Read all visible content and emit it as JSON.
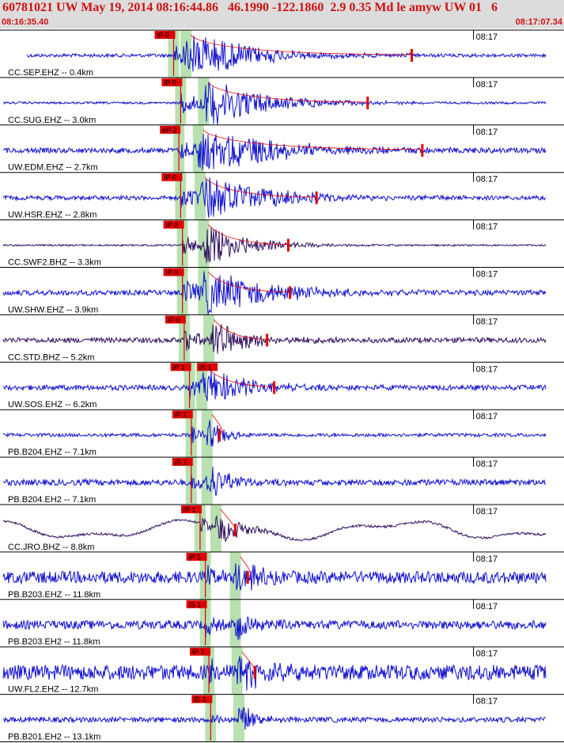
{
  "header": {
    "title": "60781021 UW May 19, 2014 08:16:44.86   46.1990 -122.1860  2.9 0.35 Md le amyw UW 01   6",
    "start_time": "08:16:35.40",
    "end_time": "08:17:07.34"
  },
  "colors": {
    "trace": "#1010d0",
    "trace_dark": "#301060",
    "pick": "#e00000",
    "window": "#b8e0b0",
    "frame": "#000000",
    "header_bg": "#dcdcdc"
  },
  "chart_data": {
    "type": "line",
    "title": "",
    "time_range": [
      "08:16:35.40",
      "08:17:07.34"
    ],
    "tick_label": "08:17",
    "tick_time_s": 24.6,
    "traces": [
      {
        "label": "CC.SEP.EHZ -- 0.4km",
        "pick": "iP 0",
        "pick_time_s": 7.6,
        "s_time_s": 8.3,
        "coda_end_s": 21.1,
        "color": "trace",
        "noise": 0.08,
        "peak": 1.0,
        "decay": 3.5
      },
      {
        "label": "CC.SUG.EHZ -- 3.0km",
        "pick": "iP 0",
        "pick_time_s": 8.0,
        "s_time_s": 9.3,
        "coda_end_s": 18.6,
        "color": "trace",
        "noise": 0.05,
        "peak": 1.0,
        "decay": 3.5
      },
      {
        "label": "UW.EDM.EHZ -- 2.7km",
        "pick": "eP 2",
        "pick_time_s": 7.9,
        "s_time_s": 9.0,
        "coda_end_s": 21.7,
        "color": "trace",
        "noise": 0.12,
        "peak": 0.9,
        "decay": 4.5
      },
      {
        "label": "UW.HSR.EHZ -- 2.8km",
        "pick": "iP 0",
        "pick_time_s": 8.0,
        "s_time_s": 9.1,
        "coda_end_s": 15.7,
        "color": "trace",
        "noise": 0.1,
        "peak": 1.0,
        "decay": 3.5
      },
      {
        "label": "CC.SWF2.BHZ -- 3.3km",
        "pick": "iP 0",
        "pick_time_s": 8.1,
        "s_time_s": 9.3,
        "coda_end_s": 14.1,
        "color": "trace_dark",
        "noise": 0.04,
        "peak": 0.9,
        "decay": 2.5
      },
      {
        "label": "UW.SHW.EHZ -- 3.9km",
        "pick": "iP 0",
        "pick_time_s": 8.1,
        "s_time_s": 9.3,
        "coda_end_s": 14.2,
        "color": "trace",
        "noise": 0.12,
        "peak": 1.0,
        "decay": 3.5
      },
      {
        "label": "CC.STD.BHZ -- 5.2km",
        "pick": "iP 0",
        "pick_time_s": 8.2,
        "s_time_s": 9.6,
        "coda_end_s": 12.9,
        "color": "trace_dark",
        "noise": 0.12,
        "peak": 0.9,
        "decay": 2.0
      },
      {
        "label": "UW.SOS.EHZ -- 6.2km",
        "pick": "iP 1",
        "s_pick": "iS 1",
        "pick_time_s": 8.5,
        "s_time_s": 9.2,
        "coda_end_s": 13.3,
        "color": "trace",
        "noise": 0.12,
        "peak": 0.8,
        "decay": 2.5
      },
      {
        "label": "PB.B204.EHZ -- 7.1km",
        "pick": "iP 1",
        "pick_time_s": 8.6,
        "s_time_s": 9.5,
        "coda_end_s": 10.2,
        "color": "trace",
        "noise": 0.08,
        "peak": 0.7,
        "decay": 1.0
      },
      {
        "label": "PB.B204.EH2 -- 7.1km",
        "pick": "iS 1",
        "pick_time_s": 8.6,
        "s_time_s": 9.5,
        "color": "trace",
        "noise": 0.14,
        "peak": 0.9,
        "decay": 1.2
      },
      {
        "label": "CC.JRO.BHZ -- 8.8km",
        "pick": "iP 1",
        "pick_time_s": 9.1,
        "s_time_s": 10.0,
        "coda_end_s": 11.1,
        "color": "trace_dark",
        "noise": 0.0,
        "peak": 0.7,
        "decay": 1.5,
        "longperiod": true
      },
      {
        "label": "PB.B203.EHZ -- 11.8km",
        "pick": "iP 1",
        "pick_time_s": 9.4,
        "s_time_s": 11.1,
        "coda_end_s": 11.8,
        "color": "trace",
        "noise": 0.28,
        "peak": 0.8,
        "decay": 1.2
      },
      {
        "label": "PB.B203.EH2 -- 11.8km",
        "pick": "iS 1",
        "pick_time_s": 9.4,
        "s_time_s": 11.1,
        "color": "trace",
        "noise": 0.2,
        "peak": 0.9,
        "decay": 1.0
      },
      {
        "label": "UW.FL2.EHZ -- 12.7km",
        "pick": "iP 1",
        "pick_time_s": 9.6,
        "s_time_s": 11.2,
        "coda_end_s": 12.2,
        "color": "trace",
        "noise": 0.35,
        "peak": 0.8,
        "decay": 1.5
      },
      {
        "label": "PB.B201.EH2 -- 13.1km",
        "pick": "iS 1",
        "pick_time_s": 9.7,
        "s_time_s": 11.3,
        "color": "trace",
        "noise": 0.12,
        "peak": 0.9,
        "decay": 0.8
      }
    ]
  }
}
